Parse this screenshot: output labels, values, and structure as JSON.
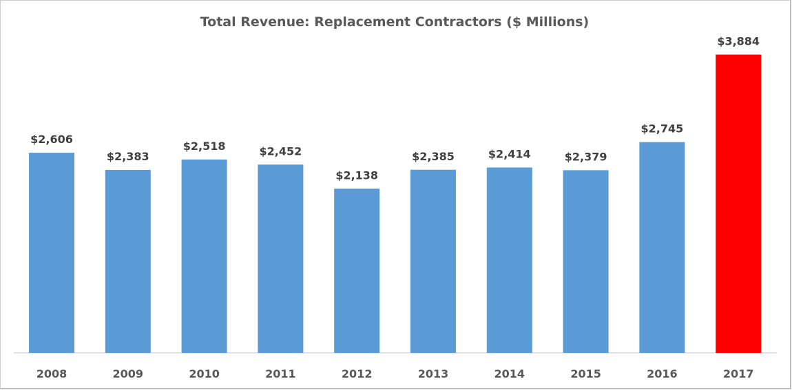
{
  "chart_data": {
    "type": "bar",
    "title": "Total Revenue: Replacement Contractors ($ Millions)",
    "xlabel": "",
    "ylabel": "",
    "categories": [
      "2008",
      "2009",
      "2010",
      "2011",
      "2012",
      "2013",
      "2014",
      "2015",
      "2016",
      "2017"
    ],
    "values": [
      2606,
      2383,
      2518,
      2452,
      2138,
      2385,
      2414,
      2379,
      2745,
      3884
    ],
    "data_labels": [
      "$2,606",
      "$2,383",
      "$2,518",
      "$2,452",
      "$2,138",
      "$2,385",
      "$2,414",
      "$2,379",
      "$2,745",
      "$3,884"
    ],
    "ylim": [
      0,
      4300
    ],
    "grid": false,
    "legend": "none",
    "colors": {
      "default": "#5b9bd5",
      "highlight": "#ff0000",
      "highlight_category": "2017"
    }
  }
}
